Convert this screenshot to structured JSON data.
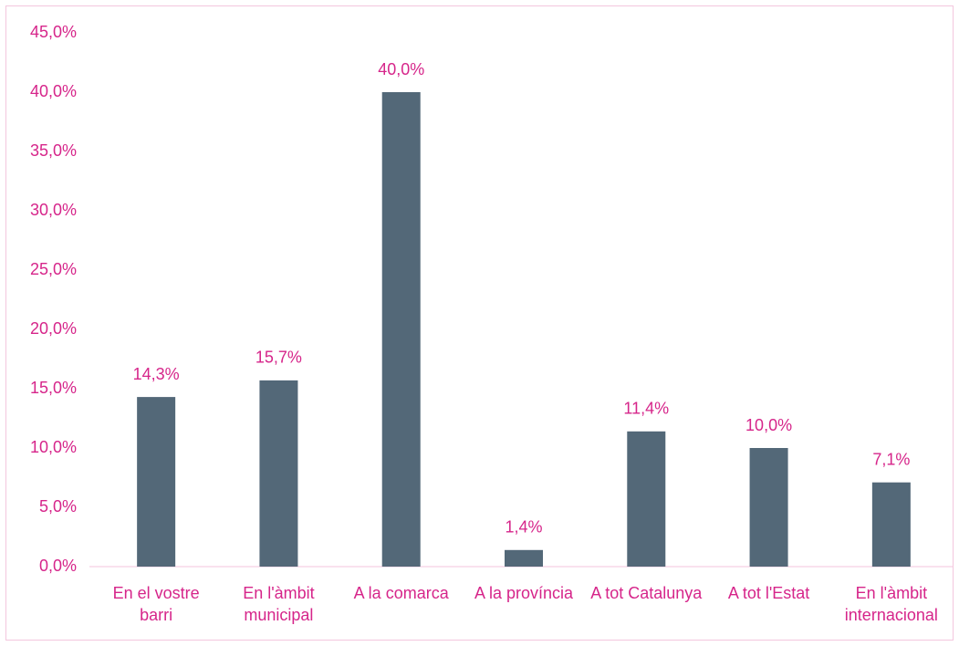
{
  "chart_data": {
    "type": "bar",
    "categories": [
      "En el vostre barri",
      "En l'àmbit municipal",
      "A la comarca",
      "A la província",
      "A tot Catalunya",
      "A tot l'Estat",
      "En l'àmbit internacional"
    ],
    "values": [
      14.3,
      15.7,
      40.0,
      1.4,
      11.4,
      10.0,
      7.1
    ],
    "value_labels": [
      "14,3%",
      "15,7%",
      "40,0%",
      "1,4%",
      "11,4%",
      "10,0%",
      "7,1%"
    ],
    "color": "#536878",
    "ylim": [
      0,
      45
    ],
    "yticks": [
      {
        "value": 0,
        "label": "0,0%"
      },
      {
        "value": 5,
        "label": "5,0%"
      },
      {
        "value": 10,
        "label": "10,0%"
      },
      {
        "value": 15,
        "label": "15,0%"
      },
      {
        "value": 20,
        "label": "20,0%"
      },
      {
        "value": 25,
        "label": "25,0%"
      },
      {
        "value": 30,
        "label": "30,0%"
      },
      {
        "value": 35,
        "label": "35,0%"
      },
      {
        "value": 40,
        "label": "40,0%"
      },
      {
        "value": 45,
        "label": "45,0%"
      }
    ]
  }
}
